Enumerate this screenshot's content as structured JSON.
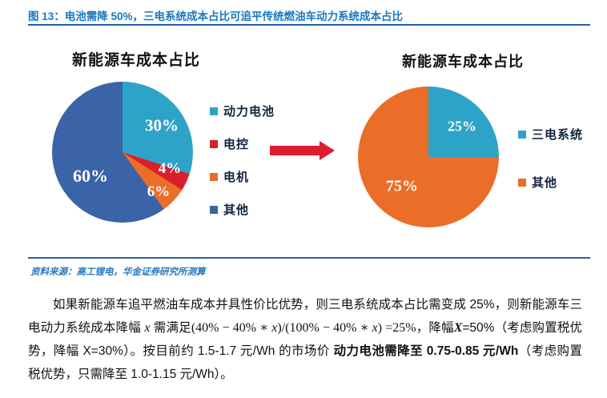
{
  "figure": {
    "title": "图 13：电池需降 50%，三电系统成本占比可追平传统燃油车动力系统成本占比",
    "source": "资料来源：高工锂电，华金证券研究所测算"
  },
  "colors": {
    "teal": "#2ea3c8",
    "red": "#d91f2c",
    "orange": "#ea6d28",
    "blue": "#3a63a8",
    "title_blue": "#1878be",
    "rule_blue": "#2460a7",
    "arrow_red": "#df1b2e"
  },
  "chart_data": [
    {
      "type": "pie",
      "title": "新能源车成本占比",
      "labels": [
        "动力电池",
        "电控",
        "电机",
        "其他"
      ],
      "values": [
        30,
        4,
        6,
        60
      ],
      "data_labels": [
        "30%",
        "4%",
        "6%",
        "60%"
      ],
      "colors": [
        "#2ea3c8",
        "#d91f2c",
        "#ea6d28",
        "#3a63a8"
      ],
      "start_angle_deg": 0,
      "direction": "clockwise",
      "legend_position": "right"
    },
    {
      "type": "pie",
      "title": "新能源车成本占比",
      "labels": [
        "三电系统",
        "其他"
      ],
      "values": [
        25,
        75
      ],
      "data_labels": [
        "25%",
        "75%"
      ],
      "colors": [
        "#2ea3c8",
        "#ea6d28"
      ],
      "start_angle_deg": 0,
      "direction": "clockwise",
      "legend_position": "right"
    }
  ],
  "arrow": {
    "direction": "right",
    "color": "#df1b2e"
  },
  "paragraph": {
    "runs": [
      {
        "style": "normal",
        "text": "如果新能源车追平燃油车成本并具性价比优势，则三电系统成本占比需变成 25%，则新能源车三电动力系统成本降幅 "
      },
      {
        "style": "formula-italic",
        "text": "x"
      },
      {
        "style": "normal",
        "text": " 需满足"
      },
      {
        "style": "formula",
        "text": "(40% − 40% ∗ "
      },
      {
        "style": "formula-italic",
        "text": "x"
      },
      {
        "style": "formula",
        "text": ")/(100% − 40% ∗ "
      },
      {
        "style": "formula-italic",
        "text": "x"
      },
      {
        "style": "formula",
        "text": ") =25%"
      },
      {
        "style": "normal",
        "text": "，降幅"
      },
      {
        "style": "bold-italic-serif",
        "text": "X"
      },
      {
        "style": "normal",
        "text": "=50%（考虑购置税优势，降幅 X=30%）。按目前约 1.5-1.7 元/Wh 的市场价 "
      },
      {
        "style": "bold",
        "text": "动力电池需降至 0.75-0.85 元/Wh"
      },
      {
        "style": "normal",
        "text": "（考虑购置税优势，只需降至 1.0-1.15 元/Wh）。"
      }
    ]
  }
}
